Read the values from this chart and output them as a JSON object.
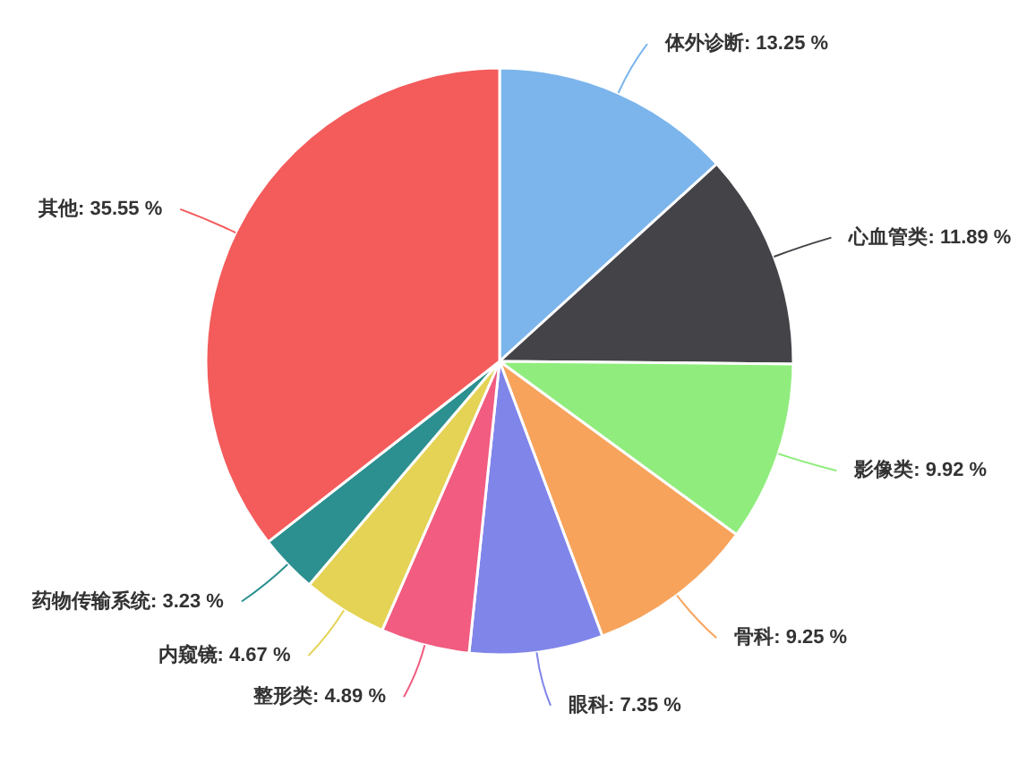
{
  "chart_data": {
    "type": "pie",
    "categories": [
      "体外诊断",
      "心血管类",
      "影像类",
      "骨科",
      "眼科",
      "整形类",
      "内窥镜",
      "药物传输系统",
      "其他"
    ],
    "values": [
      13.25,
      11.89,
      9.92,
      9.25,
      7.35,
      4.89,
      4.67,
      3.23,
      35.55
    ],
    "colors": [
      "#7cb5ec",
      "#434348",
      "#90ed7d",
      "#f7a35c",
      "#8085e9",
      "#f15c80",
      "#e4d354",
      "#2b908f",
      "#f45b5b"
    ],
    "value_labels": [
      "13.25 %",
      "11.89 %",
      "9.92 %",
      "9.25 %",
      "7.35 %",
      "4.89 %",
      "4.67 %",
      "3.23 %",
      "35.55 %"
    ]
  }
}
